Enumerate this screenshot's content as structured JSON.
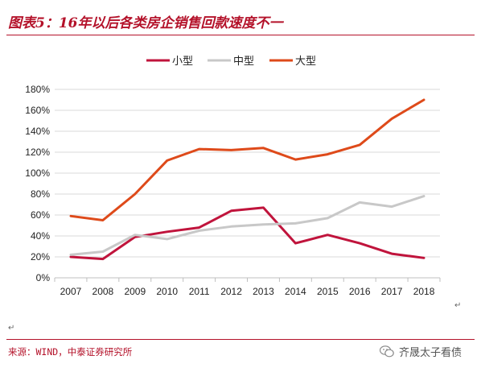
{
  "title": "图表5：16年以后各类房企销售回款速度不一",
  "source": "来源：WIND，中泰证券研究所",
  "watermark": "齐晟太子看债",
  "chart_data": {
    "type": "line",
    "categories": [
      "2007",
      "2008",
      "2009",
      "2010",
      "2011",
      "2012",
      "2013",
      "2014",
      "2015",
      "2016",
      "2017",
      "2018"
    ],
    "ylim": [
      0,
      180
    ],
    "yticks": [
      "0%",
      "20%",
      "40%",
      "60%",
      "80%",
      "100%",
      "120%",
      "140%",
      "160%",
      "180%"
    ],
    "grid": true,
    "legend": "top-center",
    "series": [
      {
        "name": "小型",
        "color": "#c0143c",
        "values": [
          20,
          18,
          39,
          44,
          48,
          64,
          67,
          33,
          41,
          33,
          23,
          19
        ]
      },
      {
        "name": "中型",
        "color": "#c8c8c8",
        "values": [
          22,
          25,
          41,
          37,
          45,
          49,
          51,
          52,
          57,
          72,
          68,
          78
        ]
      },
      {
        "name": "大型",
        "color": "#de4a1a",
        "values": [
          59,
          55,
          80,
          112,
          123,
          122,
          124,
          113,
          118,
          127,
          152,
          170
        ]
      }
    ]
  }
}
